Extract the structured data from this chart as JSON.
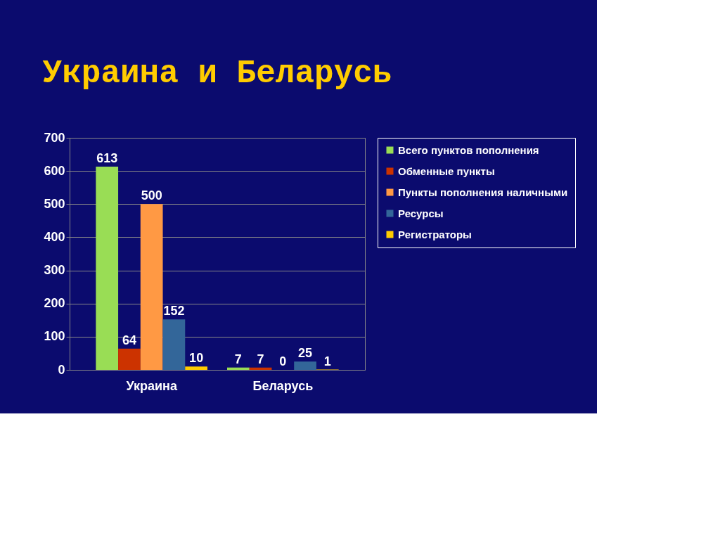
{
  "chart_data": {
    "type": "bar",
    "title": "Украина и Беларусь",
    "categories": [
      "Украина",
      "Беларусь"
    ],
    "series": [
      {
        "name": "Всего пунктов пополнения",
        "color": "#99dd55",
        "values": [
          613,
          7
        ]
      },
      {
        "name": "Обменные пункты",
        "color": "#cc3300",
        "values": [
          64,
          7
        ]
      },
      {
        "name": "Пункты пополнения наличными",
        "color": "#ff9944",
        "values": [
          500,
          0
        ]
      },
      {
        "name": "Ресурсы",
        "color": "#336699",
        "values": [
          152,
          25
        ]
      },
      {
        "name": "Регистраторы",
        "color": "#ffcc00",
        "values": [
          10,
          1
        ]
      }
    ],
    "ylim": [
      0,
      700
    ],
    "yticks": [
      0,
      100,
      200,
      300,
      400,
      500,
      600,
      700
    ],
    "grid": "y",
    "legend": "right",
    "data_labels": true
  }
}
